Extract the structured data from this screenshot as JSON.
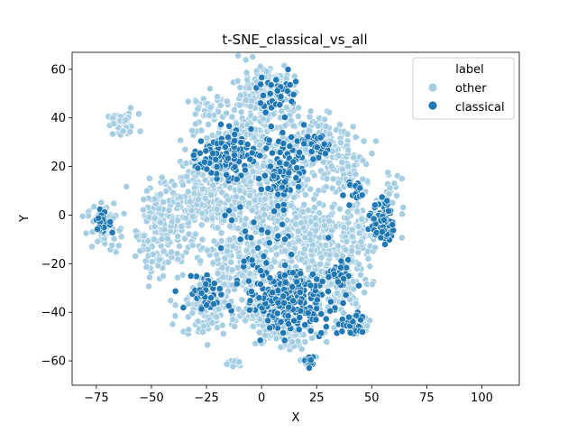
{
  "chart_data": {
    "type": "scatter",
    "title": "t-SNE_classical_vs_all",
    "xlabel": "X",
    "ylabel": "Y",
    "xlim": [
      -86,
      117
    ],
    "ylim": [
      -70,
      67
    ],
    "xticks": [
      -75,
      -50,
      -25,
      0,
      25,
      50,
      75,
      100
    ],
    "yticks": [
      -60,
      -40,
      -20,
      0,
      20,
      40,
      60
    ],
    "grid": false,
    "legend": {
      "title": "label",
      "placement": "top-right"
    },
    "series": [
      {
        "name": "other",
        "color": "#a6cee3",
        "clusters": [
          {
            "cx": -63,
            "cy": 37,
            "rx": 6,
            "ry": 4,
            "n": 50
          },
          {
            "cx": -72,
            "cy": -5,
            "rx": 6,
            "ry": 8,
            "n": 60
          },
          {
            "cx": -45,
            "cy": -5,
            "rx": 10,
            "ry": 17,
            "n": 190
          },
          {
            "cx": -28,
            "cy": 8,
            "rx": 12,
            "ry": 14,
            "n": 180
          },
          {
            "cx": -12,
            "cy": 32,
            "rx": 14,
            "ry": 12,
            "n": 130
          },
          {
            "cx": 0,
            "cy": 45,
            "rx": 12,
            "ry": 12,
            "n": 160
          },
          {
            "cx": 25,
            "cy": 30,
            "rx": 14,
            "ry": 12,
            "n": 150
          },
          {
            "cx": 40,
            "cy": 20,
            "rx": 8,
            "ry": 10,
            "n": 80
          },
          {
            "cx": 0,
            "cy": 5,
            "rx": 20,
            "ry": 16,
            "n": 340
          },
          {
            "cx": 25,
            "cy": -10,
            "rx": 18,
            "ry": 14,
            "n": 300
          },
          {
            "cx": -10,
            "cy": -20,
            "rx": 15,
            "ry": 10,
            "n": 170
          },
          {
            "cx": -25,
            "cy": -38,
            "rx": 10,
            "ry": 9,
            "n": 110
          },
          {
            "cx": 10,
            "cy": -48,
            "rx": 12,
            "ry": 6,
            "n": 90
          },
          {
            "cx": 35,
            "cy": -30,
            "rx": 10,
            "ry": 10,
            "n": 120
          },
          {
            "cx": 45,
            "cy": -5,
            "rx": 6,
            "ry": 14,
            "n": 70
          },
          {
            "cx": 58,
            "cy": 8,
            "rx": 5,
            "ry": 7,
            "n": 30
          },
          {
            "cx": -25,
            "cy": 45,
            "rx": 6,
            "ry": 5,
            "n": 25
          },
          {
            "cx": 5,
            "cy": 55,
            "rx": 6,
            "ry": 4,
            "n": 30
          },
          {
            "cx": 22,
            "cy": -60,
            "rx": 3,
            "ry": 2,
            "n": 15
          },
          {
            "cx": -13,
            "cy": -61,
            "rx": 4,
            "ry": 2,
            "n": 12
          },
          {
            "cx": 43,
            "cy": -45,
            "rx": 5,
            "ry": 3,
            "n": 25
          },
          {
            "cx": -5,
            "cy": -40,
            "rx": 8,
            "ry": 6,
            "n": 60
          }
        ]
      },
      {
        "name": "classical",
        "color": "#1f78b4",
        "clusters": [
          {
            "cx": 12,
            "cy": -35,
            "rx": 16,
            "ry": 10,
            "n": 260
          },
          {
            "cx": -17,
            "cy": 25,
            "rx": 10,
            "ry": 8,
            "n": 120
          },
          {
            "cx": 10,
            "cy": 20,
            "rx": 8,
            "ry": 12,
            "n": 90
          },
          {
            "cx": 55,
            "cy": -3,
            "rx": 4,
            "ry": 7,
            "n": 80
          },
          {
            "cx": -72,
            "cy": -3,
            "rx": 3,
            "ry": 4,
            "n": 25
          },
          {
            "cx": -25,
            "cy": -32,
            "rx": 8,
            "ry": 6,
            "n": 45
          },
          {
            "cx": 40,
            "cy": -45,
            "rx": 5,
            "ry": 4,
            "n": 30
          },
          {
            "cx": 22,
            "cy": -60,
            "rx": 2,
            "ry": 2,
            "n": 12
          },
          {
            "cx": 8,
            "cy": 50,
            "rx": 8,
            "ry": 7,
            "n": 40
          },
          {
            "cx": 25,
            "cy": 28,
            "rx": 6,
            "ry": 4,
            "n": 30
          },
          {
            "cx": 35,
            "cy": -25,
            "rx": 5,
            "ry": 5,
            "n": 30
          },
          {
            "cx": 42,
            "cy": 10,
            "rx": 4,
            "ry": 5,
            "n": 15
          },
          {
            "cx": 0,
            "cy": -10,
            "rx": 15,
            "ry": 18,
            "n": 30
          }
        ]
      }
    ]
  }
}
